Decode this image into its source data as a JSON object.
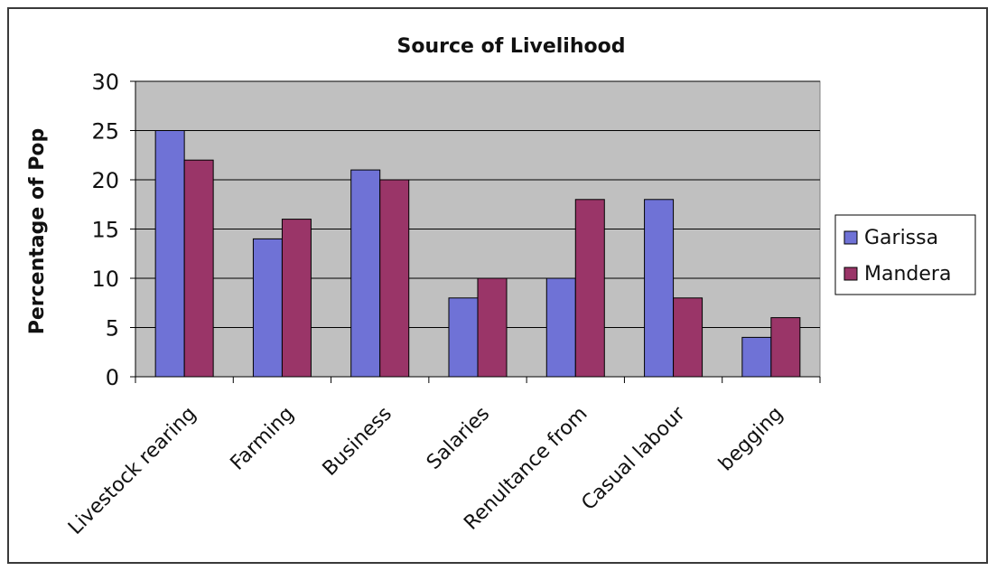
{
  "chart_data": {
    "type": "bar",
    "title": "Source of Livelihood",
    "xlabel": "",
    "ylabel": "Percentage of Pop",
    "ylim": [
      0,
      30
    ],
    "yticks": [
      0,
      5,
      10,
      15,
      20,
      25,
      30
    ],
    "grid": true,
    "legend_position": "right",
    "categories": [
      "Livestock rearing",
      "Farming",
      "Business",
      "Salaries",
      "Renultance from",
      "Casual labour",
      "begging"
    ],
    "series": [
      {
        "name": "Garissa",
        "color": "#6f72d6",
        "values": [
          25,
          14,
          21,
          8,
          10,
          18,
          4
        ]
      },
      {
        "name": "Mandera",
        "color": "#9a3568",
        "values": [
          22,
          16,
          20,
          10,
          18,
          8,
          6
        ]
      }
    ],
    "plot_background": "#c0c0c0"
  }
}
